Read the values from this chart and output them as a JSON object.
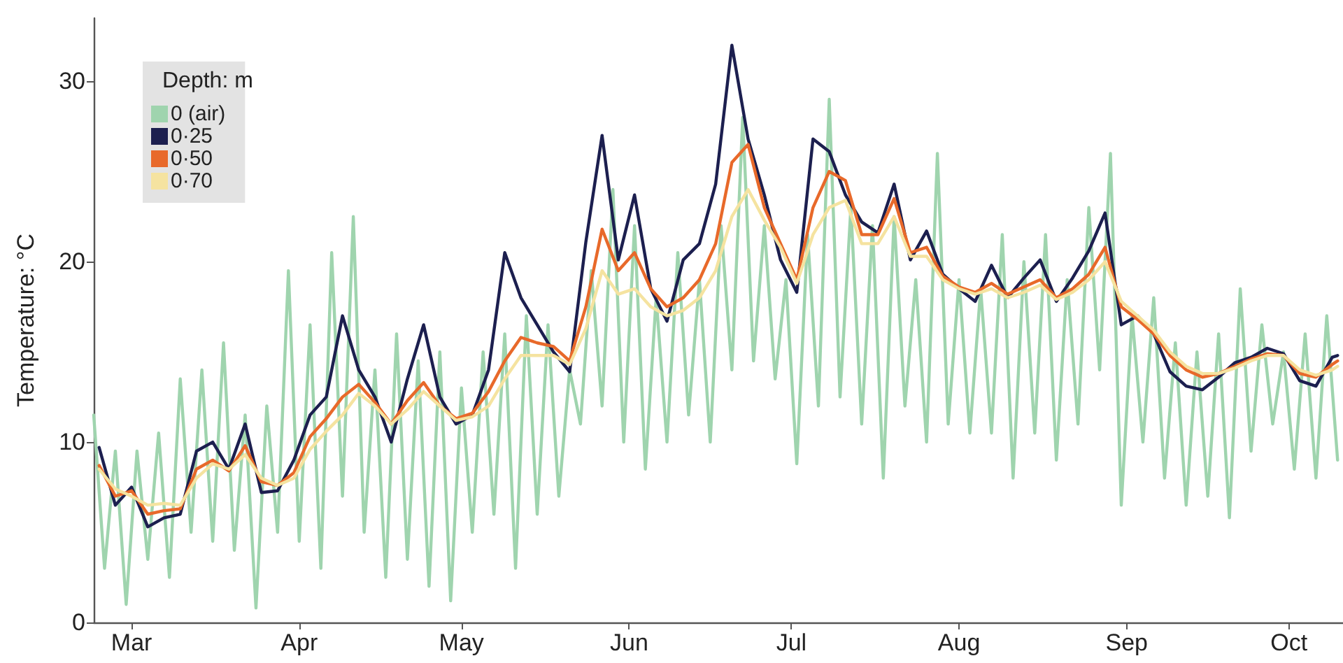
{
  "chart_data": {
    "type": "line",
    "ylabel": "Temperature: °C",
    "legend_title": "Depth: m",
    "legend": "top left",
    "grid": false,
    "marker": "none",
    "line_style": "solid",
    "xlim": [
      "--02-22",
      "--10-11"
    ],
    "xticks": [
      {
        "value": "--03-01",
        "label": "Mar"
      },
      {
        "value": "--04-01",
        "label": "Apr"
      },
      {
        "value": "--05-01",
        "label": "May"
      },
      {
        "value": "--06-01",
        "label": "Jun"
      },
      {
        "value": "--07-01",
        "label": "Jul"
      },
      {
        "value": "--08-01",
        "label": "Aug"
      },
      {
        "value": "--09-01",
        "label": "Sep"
      },
      {
        "value": "--10-01",
        "label": "Oct"
      }
    ],
    "ylim": [
      0,
      33.5
    ],
    "yticks": [
      0,
      10,
      20,
      30
    ],
    "series": [
      {
        "name": "0 (air)",
        "color": "#9fd4ae",
        "x": [
          "--02-22",
          "--02-24",
          "--02-26",
          "--02-28",
          "--03-02",
          "--03-04",
          "--03-06",
          "--03-08",
          "--03-10",
          "--03-12",
          "--03-14",
          "--03-16",
          "--03-18",
          "--03-20",
          "--03-22",
          "--03-24",
          "--03-26",
          "--03-28",
          "--03-30",
          "--04-01",
          "--04-03",
          "--04-05",
          "--04-07",
          "--04-09",
          "--04-11",
          "--04-13",
          "--04-15",
          "--04-17",
          "--04-19",
          "--04-21",
          "--04-23",
          "--04-25",
          "--04-27",
          "--04-29",
          "--05-01",
          "--05-03",
          "--05-05",
          "--05-07",
          "--05-09",
          "--05-11",
          "--05-13",
          "--05-15",
          "--05-17",
          "--05-19",
          "--05-21",
          "--05-23",
          "--05-25",
          "--05-27",
          "--05-29",
          "--05-31",
          "--06-02",
          "--06-04",
          "--06-06",
          "--06-08",
          "--06-10",
          "--06-12",
          "--06-14",
          "--06-16",
          "--06-18",
          "--06-20",
          "--06-22",
          "--06-24",
          "--06-26",
          "--06-28",
          "--06-30",
          "--07-02",
          "--07-04",
          "--07-06",
          "--07-08",
          "--07-10",
          "--07-12",
          "--07-14",
          "--07-16",
          "--07-18",
          "--07-20",
          "--07-22",
          "--07-24",
          "--07-26",
          "--07-28",
          "--07-30",
          "--08-01",
          "--08-03",
          "--08-05",
          "--08-07",
          "--08-09",
          "--08-11",
          "--08-13",
          "--08-15",
          "--08-17",
          "--08-19",
          "--08-21",
          "--08-23",
          "--08-25",
          "--08-27",
          "--08-29",
          "--08-31",
          "--09-02",
          "--09-04",
          "--09-06",
          "--09-08",
          "--09-10",
          "--09-12",
          "--09-14",
          "--09-16",
          "--09-18",
          "--09-20",
          "--09-22",
          "--09-24",
          "--09-26",
          "--09-28",
          "--09-30",
          "--10-02",
          "--10-04",
          "--10-06",
          "--10-08",
          "--10-10"
        ],
        "values": [
          11.5,
          3.0,
          9.5,
          1.0,
          9.5,
          3.5,
          10.5,
          2.5,
          13.5,
          5.0,
          14.0,
          4.5,
          15.5,
          4.0,
          11.5,
          0.8,
          12.0,
          5.0,
          19.5,
          4.5,
          16.5,
          3.0,
          20.5,
          7.0,
          22.5,
          5.0,
          14.0,
          2.5,
          16.0,
          3.5,
          14.5,
          2.0,
          15.0,
          1.2,
          13.0,
          5.0,
          15.0,
          6.0,
          16.0,
          3.0,
          17.0,
          6.0,
          16.5,
          7.0,
          14.0,
          11.0,
          19.5,
          12.0,
          24.0,
          10.0,
          22.0,
          8.5,
          18.0,
          10.0,
          20.5,
          11.5,
          19.0,
          10.0,
          22.0,
          14.0,
          28.0,
          14.5,
          22.0,
          13.5,
          19.0,
          8.8,
          21.5,
          12.0,
          29.0,
          12.5,
          23.0,
          11.0,
          22.0,
          8.0,
          22.5,
          12.0,
          19.0,
          10.0,
          26.0,
          11.0,
          19.0,
          10.5,
          18.5,
          10.5,
          21.5,
          8.0,
          20.0,
          10.5,
          21.5,
          9.0,
          19.0,
          11.0,
          23.0,
          14.0,
          26.0,
          6.5,
          17.0,
          10.0,
          18.0,
          8.0,
          15.5,
          6.5,
          15.0,
          7.0,
          16.0,
          5.8,
          18.5,
          9.5,
          16.5,
          11.0,
          15.0,
          8.5,
          16.0,
          8.0,
          17.0,
          9.0
        ]
      },
      {
        "name": "0·25",
        "color": "#1c1f4f",
        "x": [
          "--02-23",
          "--02-26",
          "--03-01",
          "--03-04",
          "--03-07",
          "--03-10",
          "--03-13",
          "--03-16",
          "--03-19",
          "--03-22",
          "--03-25",
          "--03-28",
          "--03-31",
          "--04-03",
          "--04-06",
          "--04-09",
          "--04-12",
          "--04-15",
          "--04-18",
          "--04-21",
          "--04-24",
          "--04-27",
          "--04-30",
          "--05-03",
          "--05-06",
          "--05-09",
          "--05-12",
          "--05-15",
          "--05-18",
          "--05-21",
          "--05-24",
          "--05-27",
          "--05-30",
          "--06-02",
          "--06-05",
          "--06-08",
          "--06-11",
          "--06-14",
          "--06-17",
          "--06-20",
          "--06-23",
          "--06-26",
          "--06-29",
          "--07-02",
          "--07-05",
          "--07-08",
          "--07-11",
          "--07-14",
          "--07-17",
          "--07-20",
          "--07-23",
          "--07-26",
          "--07-29",
          "--08-01",
          "--08-04",
          "--08-07",
          "--08-10",
          "--08-13",
          "--08-16",
          "--08-19",
          "--08-22",
          "--08-25",
          "--08-28",
          "--08-31",
          "--09-03",
          "--09-06",
          "--09-09",
          "--09-12",
          "--09-15",
          "--09-18",
          "--09-21",
          "--09-24",
          "--09-27",
          "--09-30",
          "--10-03",
          "--10-06",
          "--10-09",
          "--10-10"
        ],
        "values": [
          9.7,
          6.5,
          7.5,
          5.3,
          5.8,
          6.0,
          9.5,
          10.0,
          8.5,
          11.0,
          7.2,
          7.3,
          9.0,
          11.5,
          12.5,
          17.0,
          14.0,
          12.5,
          10.0,
          13.5,
          16.5,
          12.5,
          11.0,
          11.5,
          14.0,
          20.5,
          18.0,
          16.5,
          15.0,
          13.9,
          21.1,
          27.0,
          20.1,
          23.7,
          18.5,
          16.7,
          20.1,
          21.0,
          24.3,
          32.0,
          26.8,
          23.7,
          20.1,
          18.3,
          26.8,
          26.1,
          23.7,
          22.2,
          21.6,
          24.3,
          20.1,
          21.7,
          19.3,
          18.5,
          17.8,
          19.8,
          18.0,
          19.1,
          20.1,
          17.8,
          19.1,
          20.6,
          22.7,
          16.5,
          17.0,
          16.0,
          13.9,
          13.1,
          12.9,
          13.6,
          14.4,
          14.7,
          15.2,
          14.9,
          13.4,
          13.1,
          14.7,
          14.8
        ]
      },
      {
        "name": "0·50",
        "color": "#e8692a",
        "x": [
          "--02-23",
          "--02-26",
          "--03-01",
          "--03-04",
          "--03-07",
          "--03-10",
          "--03-13",
          "--03-16",
          "--03-19",
          "--03-22",
          "--03-25",
          "--03-28",
          "--03-31",
          "--04-03",
          "--04-06",
          "--04-09",
          "--04-12",
          "--04-15",
          "--04-18",
          "--04-21",
          "--04-24",
          "--04-27",
          "--04-30",
          "--05-03",
          "--05-06",
          "--05-09",
          "--05-12",
          "--05-15",
          "--05-18",
          "--05-21",
          "--05-24",
          "--05-27",
          "--05-30",
          "--06-02",
          "--06-05",
          "--06-08",
          "--06-11",
          "--06-14",
          "--06-17",
          "--06-20",
          "--06-23",
          "--06-26",
          "--06-29",
          "--07-02",
          "--07-05",
          "--07-08",
          "--07-11",
          "--07-14",
          "--07-17",
          "--07-20",
          "--07-23",
          "--07-26",
          "--07-29",
          "--08-01",
          "--08-04",
          "--08-07",
          "--08-10",
          "--08-13",
          "--08-16",
          "--08-19",
          "--08-22",
          "--08-25",
          "--08-28",
          "--08-31",
          "--09-03",
          "--09-06",
          "--09-09",
          "--09-12",
          "--09-15",
          "--09-18",
          "--09-21",
          "--09-24",
          "--09-27",
          "--09-30",
          "--10-03",
          "--10-06",
          "--10-09",
          "--10-10"
        ],
        "values": [
          8.7,
          7.0,
          7.3,
          6.0,
          6.2,
          6.3,
          8.5,
          9.0,
          8.4,
          9.8,
          7.8,
          7.6,
          8.3,
          10.3,
          11.3,
          12.5,
          13.2,
          12.2,
          11.0,
          12.3,
          13.3,
          12.0,
          11.3,
          11.6,
          12.8,
          14.5,
          15.8,
          15.5,
          15.3,
          14.5,
          17.5,
          21.8,
          19.5,
          20.5,
          18.5,
          17.5,
          18.0,
          19.0,
          21.0,
          25.5,
          26.5,
          23.0,
          21.0,
          19.0,
          23.0,
          25.0,
          24.5,
          21.5,
          21.5,
          23.5,
          20.5,
          20.8,
          19.2,
          18.6,
          18.3,
          18.8,
          18.2,
          18.6,
          19.0,
          18.0,
          18.5,
          19.3,
          20.8,
          17.5,
          16.8,
          16.0,
          14.8,
          14.0,
          13.6,
          13.8,
          14.2,
          14.6,
          14.9,
          14.8,
          13.8,
          13.6,
          14.3,
          14.5
        ]
      },
      {
        "name": "0·70",
        "color": "#f5e3a0",
        "x": [
          "--02-23",
          "--02-26",
          "--03-01",
          "--03-04",
          "--03-07",
          "--03-10",
          "--03-13",
          "--03-16",
          "--03-19",
          "--03-22",
          "--03-25",
          "--03-28",
          "--03-31",
          "--04-03",
          "--04-06",
          "--04-09",
          "--04-12",
          "--04-15",
          "--04-18",
          "--04-21",
          "--04-24",
          "--04-27",
          "--04-30",
          "--05-03",
          "--05-06",
          "--05-09",
          "--05-12",
          "--05-15",
          "--05-18",
          "--05-21",
          "--05-24",
          "--05-27",
          "--05-30",
          "--06-02",
          "--06-05",
          "--06-08",
          "--06-11",
          "--06-14",
          "--06-17",
          "--06-20",
          "--06-23",
          "--06-26",
          "--06-29",
          "--07-02",
          "--07-05",
          "--07-08",
          "--07-11",
          "--07-14",
          "--07-17",
          "--07-20",
          "--07-23",
          "--07-26",
          "--07-29",
          "--08-01",
          "--08-04",
          "--08-07",
          "--08-10",
          "--08-13",
          "--08-16",
          "--08-19",
          "--08-22",
          "--08-25",
          "--08-28",
          "--08-31",
          "--09-03",
          "--09-06",
          "--09-09",
          "--09-12",
          "--09-15",
          "--09-18",
          "--09-21",
          "--09-24",
          "--09-27",
          "--09-30",
          "--10-03",
          "--10-06",
          "--10-09",
          "--10-10"
        ],
        "values": [
          8.5,
          7.4,
          7.0,
          6.5,
          6.6,
          6.5,
          8.0,
          8.8,
          8.5,
          9.3,
          8.0,
          7.6,
          8.0,
          9.6,
          10.6,
          11.5,
          12.7,
          12.0,
          11.0,
          11.8,
          12.8,
          12.0,
          11.2,
          11.4,
          12.0,
          13.5,
          14.8,
          14.8,
          14.8,
          14.3,
          16.3,
          19.5,
          18.2,
          18.5,
          17.5,
          17.0,
          17.3,
          18.0,
          19.5,
          22.5,
          24.0,
          22.3,
          20.8,
          18.8,
          21.5,
          23.0,
          23.4,
          21.0,
          21.0,
          22.5,
          20.3,
          20.3,
          19.0,
          18.5,
          18.2,
          18.5,
          18.0,
          18.3,
          18.7,
          17.9,
          18.3,
          19.0,
          20.0,
          17.8,
          17.0,
          16.2,
          15.0,
          14.2,
          13.8,
          13.8,
          14.1,
          14.5,
          14.8,
          14.8,
          14.0,
          13.7,
          14.0,
          14.2
        ]
      }
    ]
  }
}
